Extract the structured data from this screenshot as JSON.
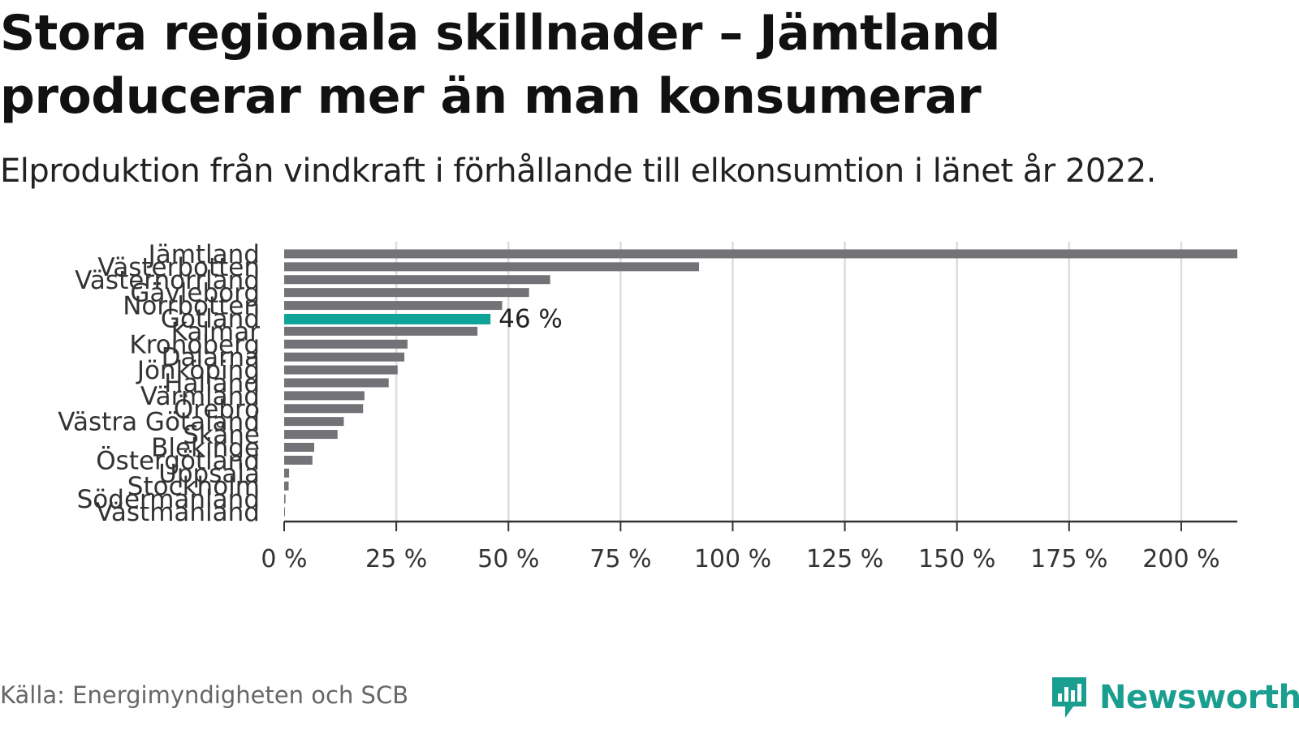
{
  "title": "Stora regionala skillnader – Jämtland producerar mer än man konsumerar",
  "subtitle": "Elproduktion från vindkraft i förhållande till elkonsumtion i länet år 2022.",
  "source": "Källa: Energimyndigheten och SCB",
  "logo_text": "Newsworthy",
  "colors": {
    "bar": "#737277",
    "highlight": "#10a498",
    "grid": "#dddddd",
    "axis": "#333333",
    "logo": "#1a9e8f"
  },
  "chart_data": {
    "type": "bar",
    "orientation": "horizontal",
    "categories": [
      "Jämtland",
      "Västerbotten",
      "Västernorrland",
      "Gävleborg",
      "Norrbotten",
      "Gotland",
      "Kalmar",
      "Kronoberg",
      "Dalarna",
      "Jönköping",
      "Halland",
      "Värmland",
      "Örebro",
      "Västra Götaland",
      "Skåne",
      "Blekinge",
      "Östergötland",
      "Uppsala",
      "Stockholm",
      "Södermanland",
      "Västmanland"
    ],
    "values": [
      212.5,
      92.5,
      59.3,
      54.6,
      48.6,
      46,
      43.1,
      27.5,
      26.8,
      25.3,
      23.3,
      17.9,
      17.6,
      13.3,
      11.9,
      6.7,
      6.3,
      1.1,
      1.0,
      0.3,
      0.1
    ],
    "highlight": "Gotland",
    "data_labels": [
      {
        "category": "Gotland",
        "text": "46 %"
      }
    ],
    "xticks": [
      "0 %",
      "25 %",
      "50 %",
      "75 %",
      "100 %",
      "125 %",
      "150 %",
      "175 %",
      "200 %"
    ],
    "xtick_values": [
      0,
      25,
      50,
      75,
      100,
      125,
      150,
      175,
      200
    ],
    "xlim": [
      0,
      212.5
    ],
    "grid": true,
    "xlabel": "",
    "ylabel": ""
  }
}
